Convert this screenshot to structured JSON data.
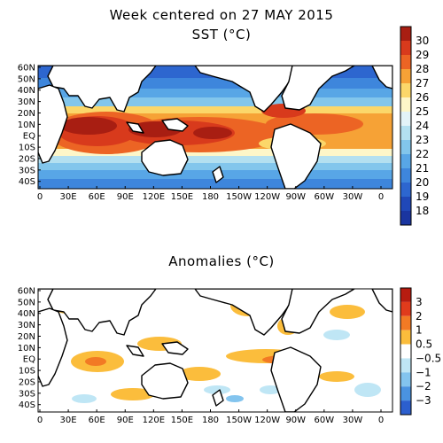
{
  "title": {
    "week_line": "Week centered on 27 MAY 2015",
    "sst_line": "SST (°C)",
    "anomaly_line": "Anomalies (°C)"
  },
  "axes": {
    "lat_labels": [
      "60N",
      "50N",
      "40N",
      "30N",
      "20N",
      "10N",
      "EQ",
      "10S",
      "20S",
      "30S",
      "40S"
    ],
    "lon_labels": [
      "0",
      "30E",
      "60E",
      "90E",
      "120E",
      "150E",
      "180",
      "150W",
      "120W",
      "90W",
      "60W",
      "30W",
      "0"
    ]
  },
  "sst_colorbar": {
    "labels": [
      "30",
      "29",
      "28",
      "27",
      "26",
      "25",
      "24",
      "23",
      "22",
      "21",
      "20",
      "19",
      "18"
    ],
    "colors": [
      "#a81e12",
      "#d83a1c",
      "#ec6424",
      "#f6a236",
      "#fbd76a",
      "#fdf6c8",
      "#e3f3f8",
      "#b3e0f0",
      "#82c6ec",
      "#58a6e6",
      "#3e86dc",
      "#2d66cf",
      "#2048b8",
      "#1a35a0"
    ]
  },
  "anomaly_colorbar": {
    "labels": [
      "3",
      "2",
      "1",
      "0.5",
      "−0.5",
      "−1",
      "−2",
      "−3"
    ],
    "colors": [
      "#b71c10",
      "#e03b1c",
      "#f27a24",
      "#fbbd3c",
      "#ffffff",
      "#bfe6f5",
      "#83c4ee",
      "#4a93e0",
      "#2c5fce"
    ]
  },
  "icons": [
    "world-map",
    "coastline"
  ]
}
